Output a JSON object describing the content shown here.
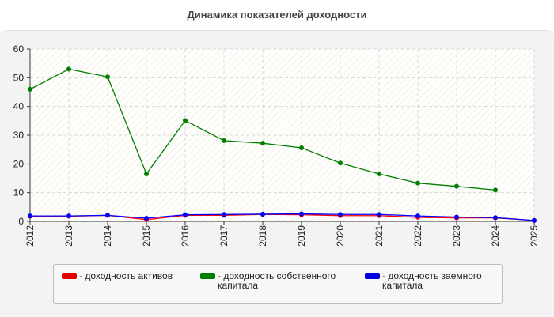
{
  "chart_data": {
    "type": "line",
    "title": "Динамика показателей доходности",
    "xlabel": "",
    "ylabel": "",
    "ylim": [
      0,
      60
    ],
    "yticks": [
      0,
      10,
      20,
      30,
      40,
      50,
      60
    ],
    "grid": true,
    "legend_position": "bottom",
    "categories": [
      "2012",
      "2013",
      "2014",
      "2015",
      "2016",
      "2017",
      "2018",
      "2019",
      "2020",
      "2021",
      "2022",
      "2023",
      "2024",
      "2025"
    ],
    "series": [
      {
        "name": "- доходность активов",
        "color": "#ff0000",
        "values": [
          1.8,
          1.8,
          2.1,
          0.6,
          2.1,
          2.1,
          2.4,
          2.3,
          2.0,
          2.0,
          1.4,
          1.2,
          1.2,
          0.3
        ]
      },
      {
        "name": "- доходность собственного капитала",
        "color": "#008000",
        "values": [
          46,
          53,
          50.3,
          16.5,
          35.1,
          28.1,
          27.2,
          25.6,
          20.3,
          16.5,
          13.3,
          12.2,
          10.9,
          null
        ]
      },
      {
        "name": "- доходность заемного капитала",
        "color": "#0000ff",
        "values": [
          1.9,
          1.9,
          2.1,
          1.1,
          2.3,
          2.4,
          2.5,
          2.6,
          2.4,
          2.4,
          1.9,
          1.5,
          1.3,
          0.3
        ]
      }
    ]
  }
}
